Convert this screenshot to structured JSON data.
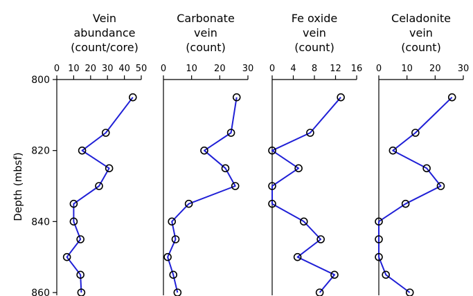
{
  "y_axis": {
    "label": "Depth (mbsf)",
    "ticks": [
      800,
      820,
      840,
      860
    ],
    "range": [
      800,
      860
    ],
    "inverted": true
  },
  "colors": {
    "line": "#1f1fd6",
    "marker_edge": "#000000",
    "axis": "#000000"
  },
  "chart_data": [
    {
      "type": "line",
      "title": [
        "Vein",
        "abundance",
        "(count/core)"
      ],
      "xlim": [
        0,
        50
      ],
      "xticks": [
        "0",
        "10",
        "20",
        "30",
        "40",
        "50"
      ],
      "depth": [
        805,
        815,
        820,
        825,
        830,
        835,
        840,
        845,
        850,
        855,
        860
      ],
      "values": [
        45,
        29,
        15,
        31,
        25,
        10,
        10,
        14,
        6,
        14,
        14.5
      ]
    },
    {
      "type": "line",
      "title": [
        "Carbonate",
        "vein",
        "(count)"
      ],
      "xlim": [
        0,
        30
      ],
      "xticks": [
        "0",
        "10",
        "20",
        "30"
      ],
      "depth": [
        805,
        815,
        820,
        825,
        830,
        835,
        840,
        845,
        850,
        855,
        860
      ],
      "values": [
        26,
        24,
        14.5,
        22,
        25.5,
        9,
        3,
        4.3,
        1.5,
        3.5,
        5
      ]
    },
    {
      "type": "line",
      "title": [
        "Fe oxide",
        "vein",
        "(count)"
      ],
      "xlim": [
        0,
        16
      ],
      "xticks": [
        "0",
        "4",
        "8",
        "12",
        "16"
      ],
      "depth": [
        805,
        815,
        820,
        825,
        830,
        835,
        840,
        845,
        850,
        855,
        860
      ],
      "values": [
        13,
        7.2,
        0,
        5,
        0,
        0,
        6,
        9.2,
        4.8,
        11.8,
        9
      ]
    },
    {
      "type": "line",
      "title": [
        "Celadonite",
        "vein",
        "(count)"
      ],
      "xlim": [
        0,
        30
      ],
      "xticks": [
        "0",
        "10",
        "20",
        "30"
      ],
      "depth": [
        805,
        815,
        820,
        825,
        830,
        835,
        840,
        845,
        850,
        855,
        860
      ],
      "values": [
        26,
        13,
        5,
        17,
        22,
        9.5,
        0,
        0,
        0,
        2.5,
        11
      ]
    }
  ]
}
